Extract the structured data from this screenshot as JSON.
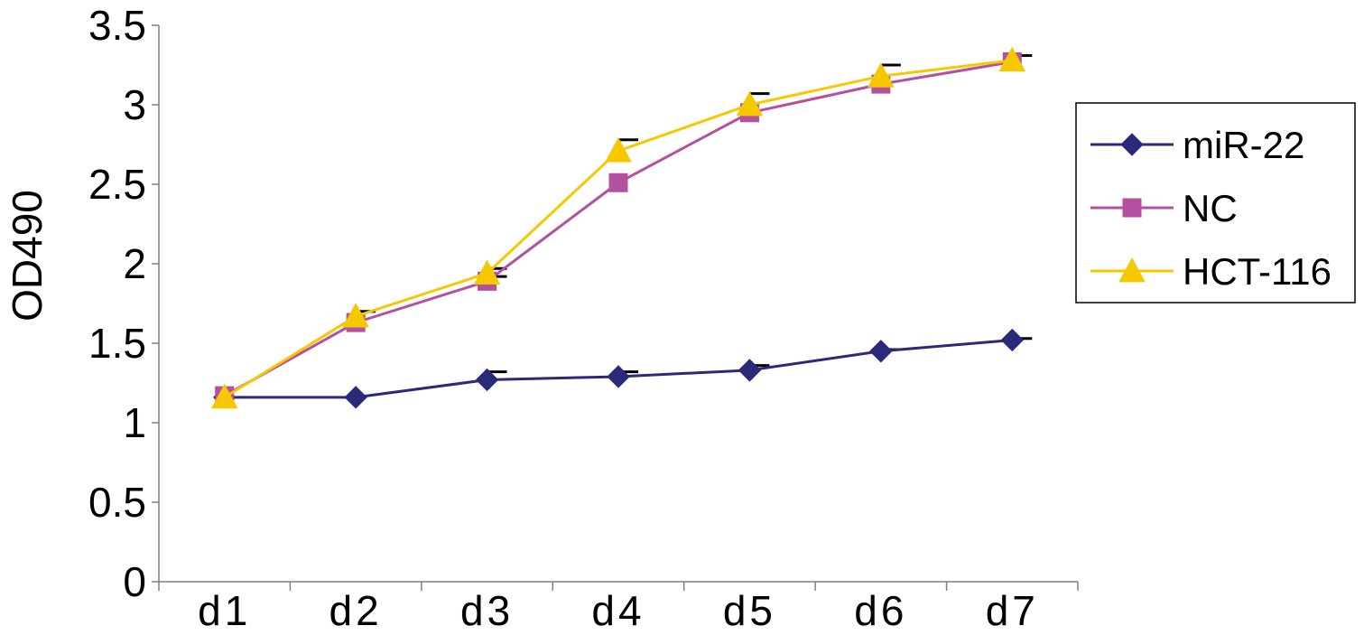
{
  "chart_data": {
    "type": "line",
    "title": "",
    "xlabel": "",
    "ylabel": "OD490",
    "categories": [
      "d1",
      "d2",
      "d3",
      "d4",
      "d5",
      "d6",
      "d7"
    ],
    "ylim": [
      0,
      3.5
    ],
    "yticks": [
      0,
      0.5,
      1,
      1.5,
      2,
      2.5,
      3,
      3.5
    ],
    "ytick_labels": [
      "0",
      "0.5",
      "1",
      "1.5",
      "2",
      "2.5",
      "3",
      "3.5"
    ],
    "grid": false,
    "legend_position": "right",
    "error_bars": "upper caps only",
    "series": [
      {
        "name": "miR-22",
        "marker": "diamond",
        "color": "#2b2a7a",
        "values": [
          1.16,
          1.16,
          1.27,
          1.29,
          1.33,
          1.45,
          1.52
        ],
        "errors": [
          0.0,
          0.0,
          0.05,
          0.03,
          0.03,
          0.01,
          0.01
        ]
      },
      {
        "name": "NC",
        "marker": "square",
        "color": "#b54fa0",
        "values": [
          1.17,
          1.63,
          1.89,
          2.51,
          2.95,
          3.13,
          3.27
        ],
        "errors": [
          0.0,
          0.0,
          0.03,
          0.0,
          0.0,
          0.0,
          0.0
        ]
      },
      {
        "name": "HCT-116",
        "marker": "triangle",
        "color": "#f5c800",
        "values": [
          1.16,
          1.67,
          1.94,
          2.71,
          3.0,
          3.18,
          3.28
        ],
        "errors": [
          0.0,
          0.03,
          0.03,
          0.07,
          0.07,
          0.07,
          0.03
        ]
      }
    ]
  }
}
